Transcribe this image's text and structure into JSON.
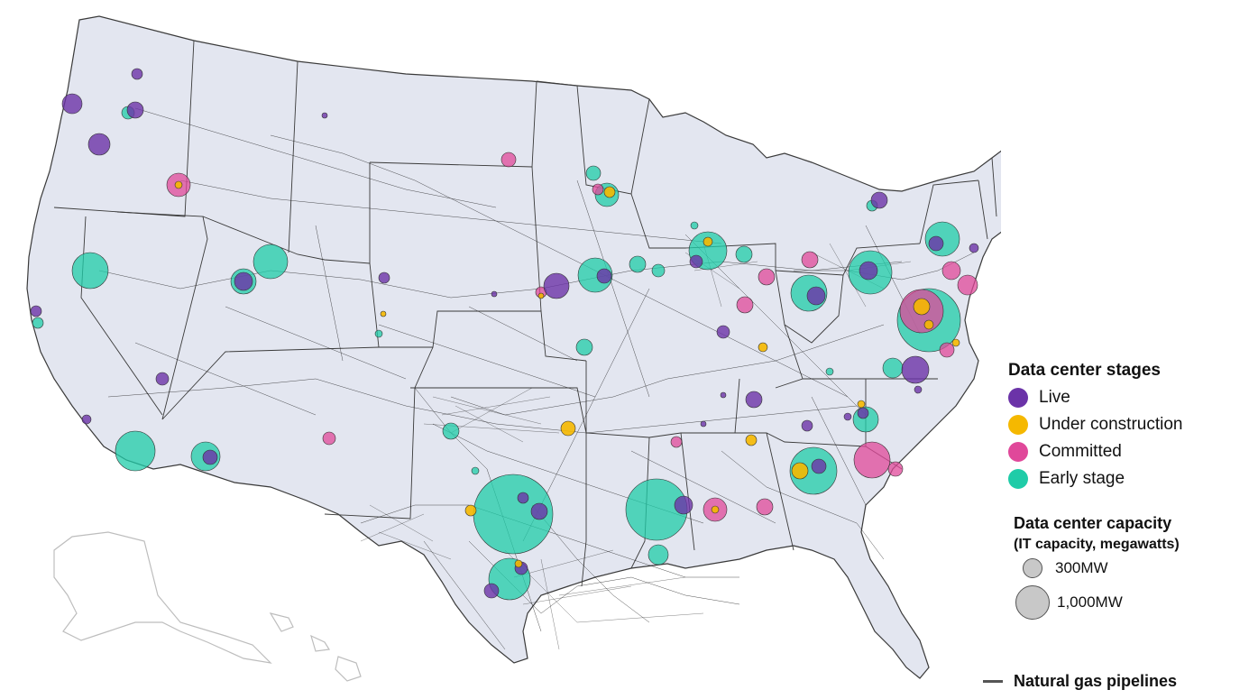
{
  "legend": {
    "stages_title": "Data center stages",
    "stages": [
      {
        "label": "Live",
        "color": "#6b33a8"
      },
      {
        "label": "Under construction",
        "color": "#f5b800"
      },
      {
        "label": "Committed",
        "color": "#e0489a"
      },
      {
        "label": "Early stage",
        "color": "#1fcca8"
      }
    ],
    "capacity_title": "Data center capacity",
    "capacity_subtitle": "(IT capacity, megawatts)",
    "capacity_items": [
      {
        "label": "300MW"
      },
      {
        "label": "1,000MW"
      }
    ],
    "pipeline_label": "Natural gas pipelines"
  },
  "colors": {
    "land": "#e3e6f0",
    "border": "#3a3a3a",
    "pipeline": "#1a1a1a",
    "outline_ghost": "#bdbdbd"
  }
}
